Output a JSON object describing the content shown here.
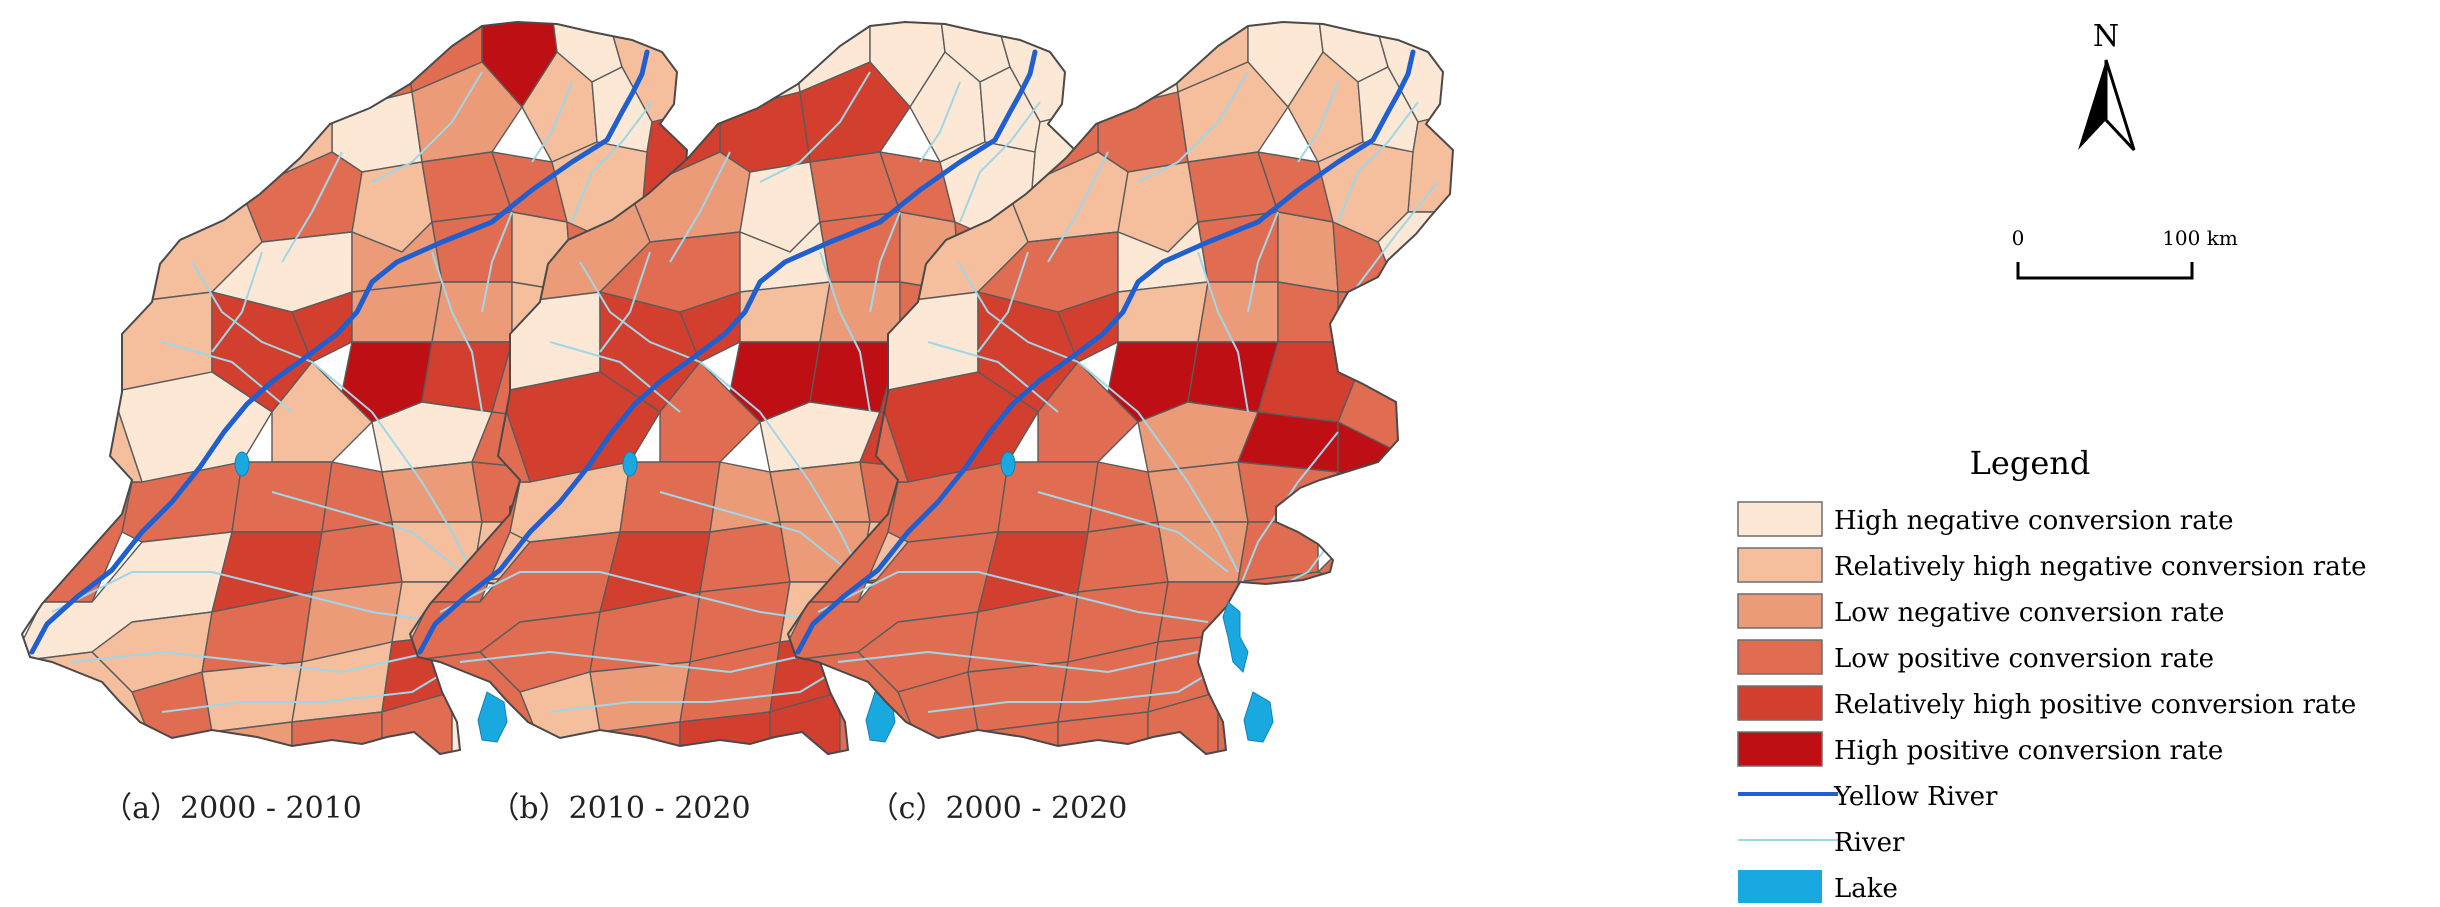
{
  "maps": [
    {
      "caption": "（a）2000 - 2010",
      "fill": [
        "lrh",
        "lp",
        "lp",
        "hp",
        "hn",
        "rhn",
        "hn",
        "ln",
        "rhn",
        "hn",
        "rhp",
        "lp",
        "rhn",
        "lp",
        "lp",
        "rhn",
        "hn",
        "rhn",
        "hn",
        "ln",
        "lp",
        "rhn",
        "lp",
        "ln",
        "rhp",
        "ln",
        "ln",
        "rhn",
        "rhn",
        "rhp",
        "hp",
        "rhp",
        "lp",
        "ln",
        "hn",
        "rhn",
        "hn",
        "lp",
        "rhp",
        "rhn",
        "lp",
        "lp",
        "lp",
        "ln",
        "lp",
        "rhn",
        "lp",
        "hn",
        "rhp",
        "lp",
        "rhn",
        "rhn",
        "rhn",
        "lp",
        "ln",
        "rhn",
        "rhn",
        "lp",
        "rhn",
        "rhn",
        "rhp",
        "lp",
        "rhn",
        "ln",
        "lp",
        "lp",
        "hn",
        "lp",
        "rhn",
        "rhn",
        "rhn",
        "rhn"
      ]
    },
    {
      "caption": "（b）2010 - 2020",
      "fill": [
        "lp",
        "hn",
        "hn",
        "hn",
        "hn",
        "hn",
        "rhp",
        "rhp",
        "hn",
        "hn",
        "hn",
        "ln",
        "hn",
        "lp",
        "lp",
        "hn",
        "hn",
        "ln",
        "lp",
        "hn",
        "lp",
        "ln",
        "lp",
        "rhn",
        "rhp",
        "rhn",
        "ln",
        "lp",
        "hn",
        "rhp",
        "hp",
        "hp",
        "rhp",
        "lp",
        "rhp",
        "lp",
        "hn",
        "rhp",
        "hp",
        "rhn",
        "rhn",
        "lp",
        "ln",
        "ln",
        "lp",
        "lp",
        "lp",
        "lp",
        "rhp",
        "lp",
        "ln",
        "rhn",
        "lp",
        "lp",
        "lp",
        "rhn",
        "lp",
        "rhn",
        "ln",
        "lp",
        "rhp",
        "lp",
        "rhp",
        "lp",
        "rhp",
        "rhp",
        "lp",
        "lp",
        "lp",
        "rhp",
        "rhp",
        "lp"
      ]
    },
    {
      "caption": "（c）2000 - 2020",
      "fill": [
        "lp",
        "hn",
        "rhn",
        "hn",
        "hn",
        "hn",
        "lp",
        "rhn",
        "rhn",
        "hn",
        "rhn",
        "rhn",
        "rhn",
        "lp",
        "lp",
        "rhn",
        "hn",
        "rhn",
        "lp",
        "hn",
        "lp",
        "ln",
        "lp",
        "lp",
        "rhp",
        "rhn",
        "ln",
        "lp",
        "hn",
        "rhp",
        "hp",
        "hp",
        "rhp",
        "lp",
        "rhp",
        "lp",
        "ln",
        "hp",
        "hp",
        "lp",
        "lp",
        "lp",
        "lp",
        "ln",
        "lp",
        "lp",
        "lp",
        "lp",
        "rhp",
        "lp",
        "ln",
        "lp",
        "lp",
        "lp",
        "lp",
        "lp",
        "lp",
        "lp",
        "lp",
        "lp",
        "lp",
        "lp",
        "lp",
        "lp",
        "lp",
        "lp",
        "lp",
        "lp",
        "lp",
        "lp",
        "lp",
        "lp"
      ]
    }
  ],
  "legend": {
    "title": "Legend",
    "items": [
      {
        "key": "hn",
        "label": "High negative conversion rate",
        "color": "#fde8d6"
      },
      {
        "key": "rhn",
        "label": "Relatively high negative conversion rate",
        "color": "#f5bf9d"
      },
      {
        "key": "ln",
        "label": "Low negative conversion rate",
        "color": "#ec9b78"
      },
      {
        "key": "lp",
        "label": "Low positive conversion rate",
        "color": "#e06d51"
      },
      {
        "key": "rhp",
        "label": "Relatively high positive conversion rate",
        "color": "#d23f2f"
      },
      {
        "key": "hp",
        "label": "High positive conversion rate",
        "color": "#bd0f14"
      },
      {
        "key": "yellow-river",
        "label": "Yellow River",
        "color": "#1f5fcf"
      },
      {
        "key": "river",
        "label": "River",
        "color": "#9fd6e8"
      },
      {
        "key": "lake",
        "label": "Lake",
        "color": "#19a8e0"
      }
    ]
  },
  "north_arrow": {
    "label": "N"
  },
  "scale_bar": {
    "left_label": "0",
    "right_label": "100 km"
  }
}
